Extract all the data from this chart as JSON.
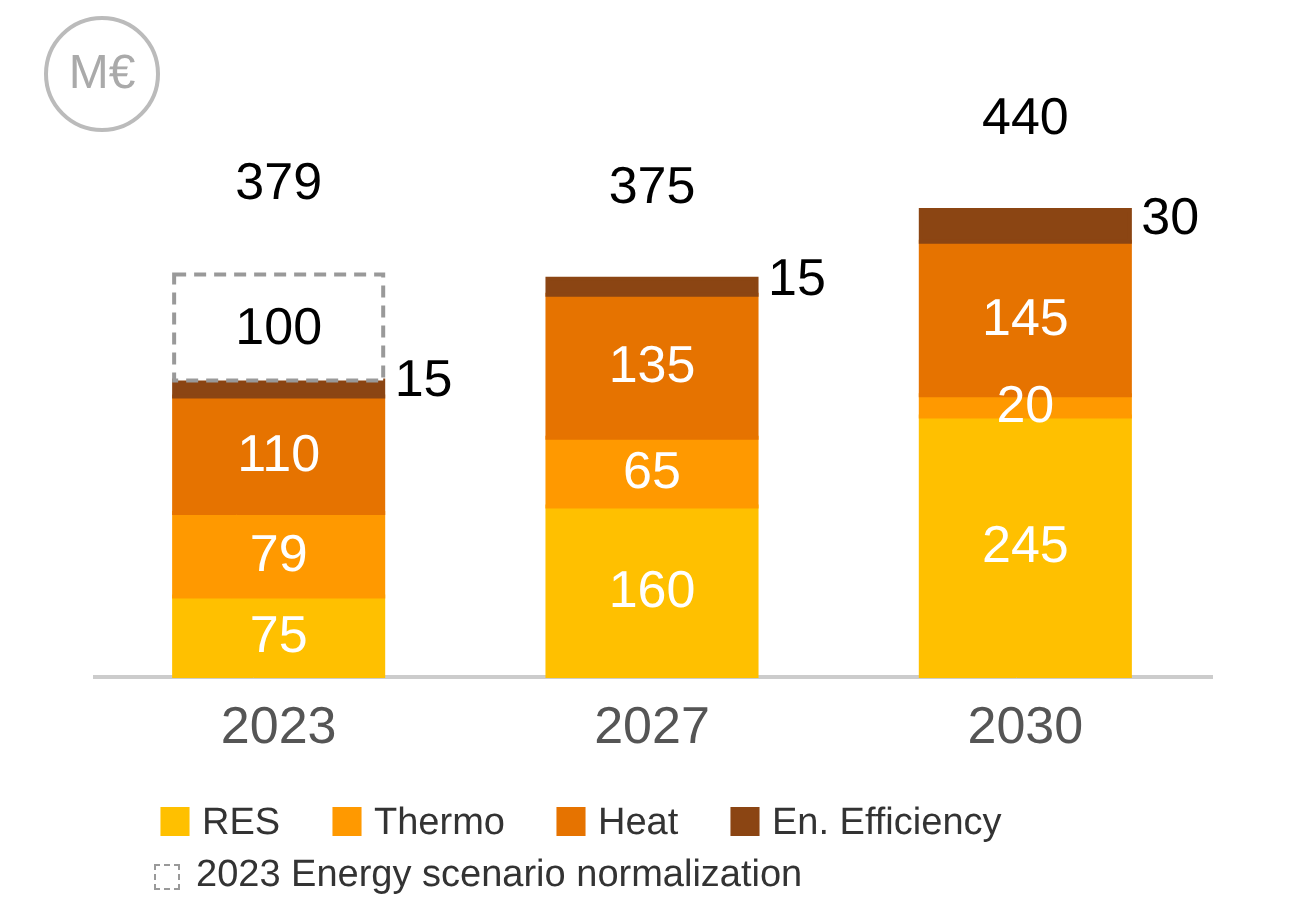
{
  "chart_data": {
    "type": "bar",
    "ylabel": "M€",
    "categories": [
      "2023",
      "2027",
      "2030"
    ],
    "stacked": true,
    "data_labels": true,
    "legend": "bottom",
    "totals": [
      "379",
      "375",
      "440"
    ],
    "series": [
      {
        "name": "RES",
        "color": "#ffc000",
        "values": [
          75,
          160,
          245
        ]
      },
      {
        "name": "Thermo",
        "color": "#ff9900",
        "values": [
          79,
          65,
          20
        ]
      },
      {
        "name": "Heat",
        "color": "#e67300",
        "values": [
          110,
          135,
          145
        ]
      },
      {
        "name": "En. Efficiency",
        "color": "#8b4513",
        "values": [
          15,
          15,
          30
        ]
      },
      {
        "name": "2023 Energy scenario normalization",
        "color": "#ffffff",
        "line_style": "dashed",
        "values": [
          100,
          null,
          null
        ]
      }
    ]
  }
}
